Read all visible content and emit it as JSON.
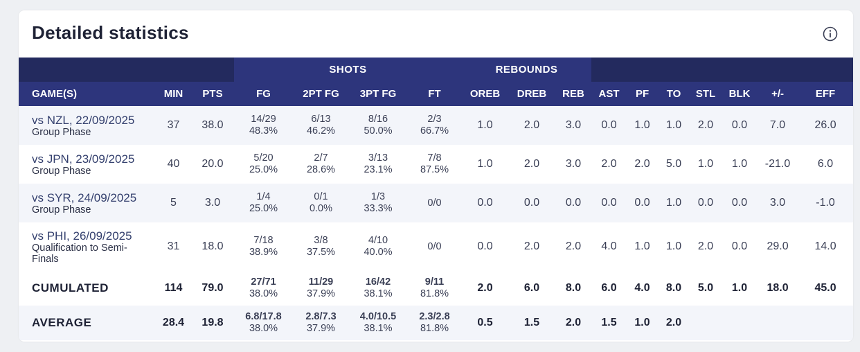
{
  "card": {
    "title": "Detailed statistics"
  },
  "header_groups": {
    "shots": "SHOTS",
    "rebounds": "REBOUNDS"
  },
  "columns": {
    "game": "GAME(S)",
    "min": "MIN",
    "pts": "PTS",
    "fg": "FG",
    "fg2": "2PT FG",
    "fg3": "3PT FG",
    "ft": "FT",
    "oreb": "OREB",
    "dreb": "DREB",
    "reb": "REB",
    "ast": "AST",
    "pf": "PF",
    "to": "TO",
    "stl": "STL",
    "blk": "BLK",
    "pm": "+/-",
    "eff": "EFF"
  },
  "rows": [
    {
      "opponent": "vs NZL, 22/09/2025",
      "phase": "Group Phase",
      "min": "37",
      "pts": "38.0",
      "fg_made": "14/29",
      "fg_pct": "48.3%",
      "fg2_made": "6/13",
      "fg2_pct": "46.2%",
      "fg3_made": "8/16",
      "fg3_pct": "50.0%",
      "ft_made": "2/3",
      "ft_pct": "66.7%",
      "oreb": "1.0",
      "dreb": "2.0",
      "reb": "3.0",
      "ast": "0.0",
      "pf": "1.0",
      "to": "1.0",
      "stl": "2.0",
      "blk": "0.0",
      "pm": "7.0",
      "eff": "26.0"
    },
    {
      "opponent": "vs JPN, 23/09/2025",
      "phase": "Group Phase",
      "min": "40",
      "pts": "20.0",
      "fg_made": "5/20",
      "fg_pct": "25.0%",
      "fg2_made": "2/7",
      "fg2_pct": "28.6%",
      "fg3_made": "3/13",
      "fg3_pct": "23.1%",
      "ft_made": "7/8",
      "ft_pct": "87.5%",
      "oreb": "1.0",
      "dreb": "2.0",
      "reb": "3.0",
      "ast": "2.0",
      "pf": "2.0",
      "to": "5.0",
      "stl": "1.0",
      "blk": "1.0",
      "pm": "-21.0",
      "eff": "6.0"
    },
    {
      "opponent": "vs SYR, 24/09/2025",
      "phase": "Group Phase",
      "min": "5",
      "pts": "3.0",
      "fg_made": "1/4",
      "fg_pct": "25.0%",
      "fg2_made": "0/1",
      "fg2_pct": "0.0%",
      "fg3_made": "1/3",
      "fg3_pct": "33.3%",
      "ft_made": "0/0",
      "ft_pct": "",
      "oreb": "0.0",
      "dreb": "0.0",
      "reb": "0.0",
      "ast": "0.0",
      "pf": "0.0",
      "to": "1.0",
      "stl": "0.0",
      "blk": "0.0",
      "pm": "3.0",
      "eff": "-1.0"
    },
    {
      "opponent": "vs PHI, 26/09/2025",
      "phase": "Qualification to Semi-Finals",
      "min": "31",
      "pts": "18.0",
      "fg_made": "7/18",
      "fg_pct": "38.9%",
      "fg2_made": "3/8",
      "fg2_pct": "37.5%",
      "fg3_made": "4/10",
      "fg3_pct": "40.0%",
      "ft_made": "0/0",
      "ft_pct": "",
      "oreb": "0.0",
      "dreb": "2.0",
      "reb": "2.0",
      "ast": "4.0",
      "pf": "1.0",
      "to": "1.0",
      "stl": "2.0",
      "blk": "0.0",
      "pm": "29.0",
      "eff": "14.0"
    }
  ],
  "cumulated": {
    "label": "CUMULATED",
    "min": "114",
    "pts": "79.0",
    "fg_made": "27/71",
    "fg_pct": "38.0%",
    "fg2_made": "11/29",
    "fg2_pct": "37.9%",
    "fg3_made": "16/42",
    "fg3_pct": "38.1%",
    "ft_made": "9/11",
    "ft_pct": "81.8%",
    "oreb": "2.0",
    "dreb": "6.0",
    "reb": "8.0",
    "ast": "6.0",
    "pf": "4.0",
    "to": "8.0",
    "stl": "5.0",
    "blk": "1.0",
    "pm": "18.0",
    "eff": "45.0"
  },
  "average": {
    "label": "AVERAGE",
    "min": "28.4",
    "pts": "19.8",
    "fg_made": "6.8/17.8",
    "fg_pct": "38.0%",
    "fg2_made": "2.8/7.3",
    "fg2_pct": "37.9%",
    "fg3_made": "4.0/10.5",
    "fg3_pct": "38.1%",
    "ft_made": "2.3/2.8",
    "ft_pct": "81.8%",
    "oreb": "0.5",
    "dreb": "1.5",
    "reb": "2.0",
    "ast": "1.5",
    "pf": "1.0",
    "to": "2.0",
    "stl": "",
    "blk": "",
    "pm": "",
    "eff": ""
  },
  "icons": {
    "info": "info-icon"
  }
}
